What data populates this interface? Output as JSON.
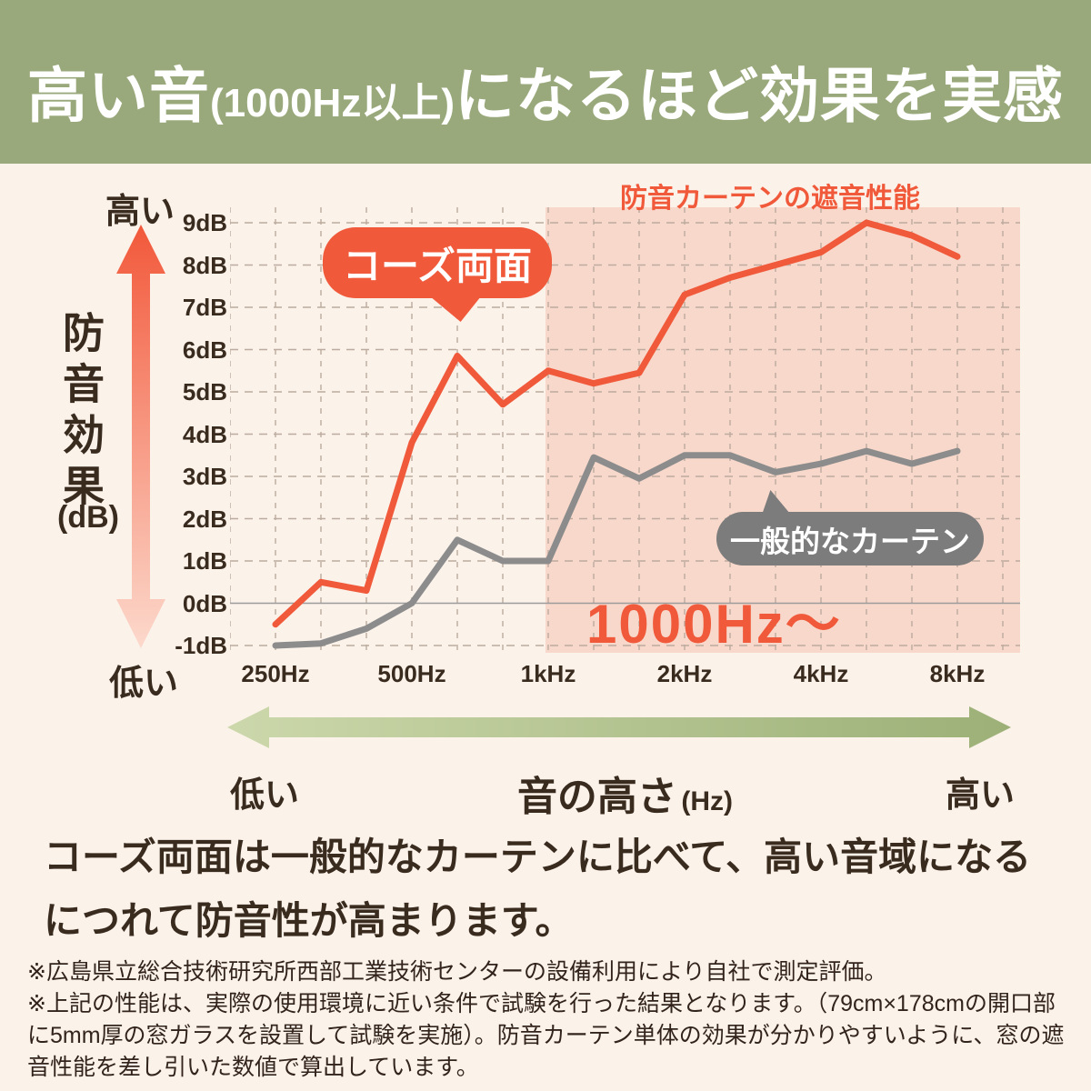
{
  "banner": {
    "highlight": "高い音",
    "sub": "(1000Hz以上)",
    "rest": "になるほど効果を実感"
  },
  "y_axis": {
    "top_label": "高い",
    "title": "防音効果",
    "unit": "(dB)",
    "bottom_label": "低い"
  },
  "chart": {
    "title": "防音カーテンの遮音性能",
    "region_label": "1000Hz〜",
    "orange_callout": "コーズ両面",
    "gray_callout": "一般的なカーテン"
  },
  "chart_data": {
    "type": "line",
    "x": [
      "250Hz",
      "315Hz",
      "400Hz",
      "500Hz",
      "630Hz",
      "800Hz",
      "1kHz",
      "1.25kHz",
      "1.6kHz",
      "2kHz",
      "2.5kHz",
      "3.15kHz",
      "4kHz",
      "5kHz",
      "6.3kHz",
      "8kHz"
    ],
    "x_major_labels": [
      "250Hz",
      "500Hz",
      "1kHz",
      "2kHz",
      "4kHz",
      "8kHz"
    ],
    "y_tick_labels": [
      "9dB",
      "8dB",
      "7dB",
      "6dB",
      "5dB",
      "4dB",
      "3dB",
      "2dB",
      "1dB",
      "0dB",
      "-1dB"
    ],
    "ylabel": "防音効果 (dB)",
    "xlabel": "音の高さ (Hz)",
    "ylim": [
      -1,
      9
    ],
    "grid": true,
    "series": [
      {
        "name": "コーズ両面",
        "color": "#f0593a",
        "values": [
          -0.5,
          0.5,
          0.3,
          3.8,
          5.85,
          4.7,
          5.5,
          5.2,
          5.45,
          7.3,
          7.7,
          8.0,
          8.3,
          9.0,
          8.7,
          8.2
        ]
      },
      {
        "name": "一般的なカーテン",
        "color": "#8c8c8c",
        "values": [
          -1.0,
          -0.95,
          -0.6,
          0.0,
          1.5,
          1.0,
          1.0,
          3.45,
          2.95,
          3.5,
          3.5,
          3.1,
          3.3,
          3.6,
          3.3,
          3.6
        ]
      }
    ],
    "highlight_region": {
      "from_x": "1kHz",
      "to_x": "end",
      "label": "1000Hz〜",
      "fill": "#f8d8cb"
    },
    "title": "防音カーテンの遮音性能"
  },
  "x_axis_arrow": {
    "left_label": "低い",
    "title": "音の高さ",
    "unit": "(Hz)",
    "right_label": "高い"
  },
  "description": "コーズ両面は一般的なカーテンに比べて、高い音域になるにつれて防音性が高まります。",
  "footnotes": [
    "※広島県立総合技術研究所西部工業技術センターの設備利用により自社で測定評価。",
    "※上記の性能は、実際の使用環境に近い条件で試験を行った結果となります。（79cm×178cmの開口部に5mm厚の窓ガラスを設置して試験を実施）。防音カーテン単体の効果が分かりやすいように、窓の遮音性能を差し引いた数値で算出しています。"
  ],
  "colors": {
    "banner_bg": "#9aa97c",
    "page_bg": "#fbf2ea",
    "accent_orange": "#f0593a",
    "line_gray": "#8c8c8c",
    "bubble_gray": "#7c7c7c",
    "highlight_region_fill": "#f8d8cb",
    "grid_line": "#bcab9e",
    "zero_line": "#9c9c9c",
    "text_dark": "#3a2b1f",
    "arrow_gradient_top": "#f2583a",
    "arrow_gradient_bottom": "#fcd9cc",
    "freq_arrow_left": "#ccd8ab",
    "freq_arrow_right": "#9cb077"
  }
}
